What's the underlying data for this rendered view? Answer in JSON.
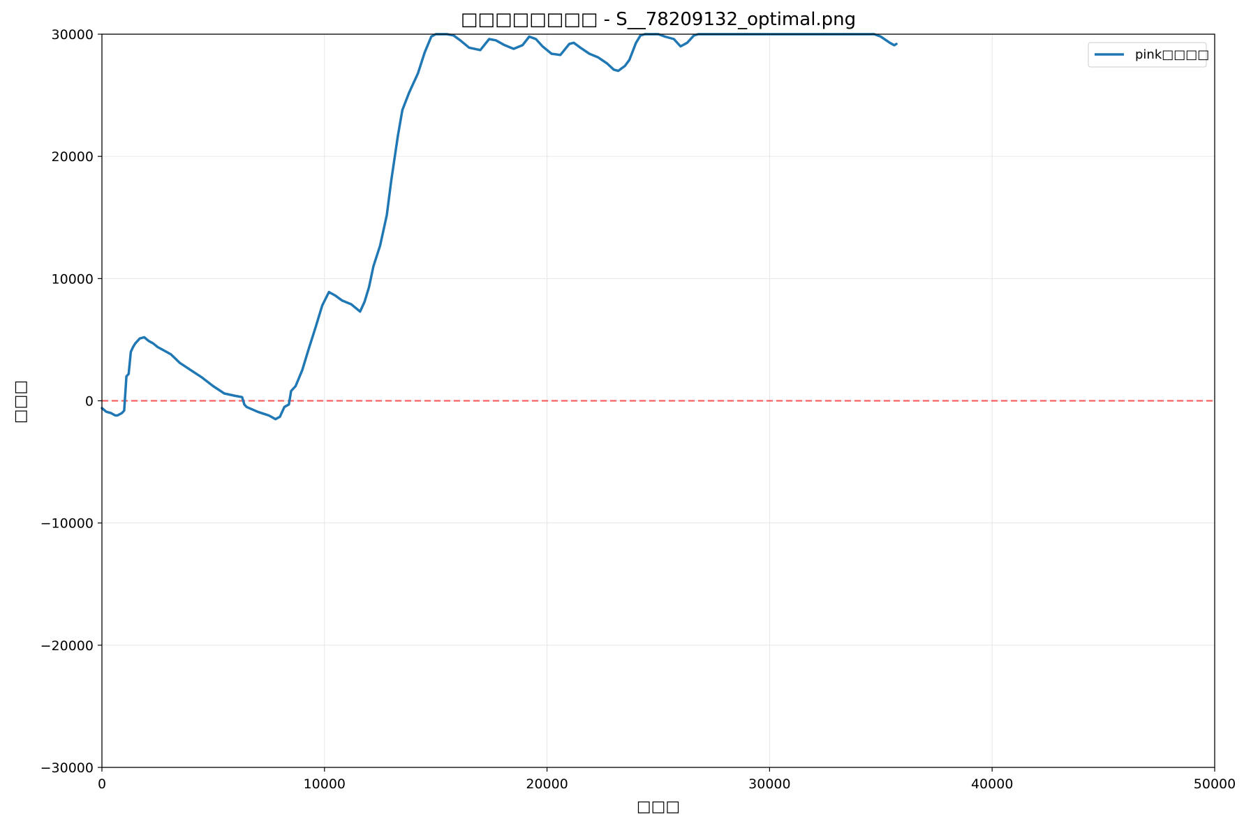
{
  "chart_data": {
    "type": "line",
    "title": "□□□□□□□□ - S__78209132_optimal.png",
    "xlabel": "□□□",
    "ylabel": "□□□",
    "xlim": [
      0,
      50000
    ],
    "ylim": [
      -30000,
      30000
    ],
    "xticks": [
      0,
      10000,
      20000,
      30000,
      40000,
      50000
    ],
    "xtick_labels": [
      "0",
      "10000",
      "20000",
      "30000",
      "40000",
      "50000"
    ],
    "yticks": [
      -30000,
      -20000,
      -10000,
      0,
      10000,
      20000,
      30000
    ],
    "ytick_labels": [
      "−30000",
      "−20000",
      "−10000",
      "0",
      "10000",
      "20000",
      "30000"
    ],
    "grid": true,
    "legend_position": "top-right",
    "reference_line": {
      "y": 0,
      "style": "dashed",
      "color": "#ff0000"
    },
    "series": [
      {
        "name": "pink□□□□",
        "color": "#1f77b4",
        "x": [
          0,
          200,
          400,
          600,
          700,
          900,
          1000,
          1100,
          1200,
          1300,
          1400,
          1500,
          1700,
          1900,
          2100,
          2300,
          2500,
          2700,
          2900,
          3100,
          3500,
          4000,
          4500,
          5000,
          5500,
          6000,
          6300,
          6400,
          6500,
          7000,
          7500,
          7800,
          8000,
          8200,
          8400,
          8500,
          8700,
          9000,
          9300,
          9600,
          9900,
          10200,
          10500,
          10800,
          11200,
          11600,
          11800,
          12000,
          12200,
          12500,
          12800,
          13000,
          13300,
          13500,
          13800,
          14200,
          14500,
          14800,
          15000,
          15200,
          15500,
          15800,
          16100,
          16500,
          17000,
          17400,
          17700,
          18100,
          18500,
          18900,
          19200,
          19500,
          19800,
          20200,
          20600,
          21000,
          21200,
          21500,
          21900,
          22300,
          22700,
          23000,
          23200,
          23500,
          23700,
          24000,
          24200,
          24400,
          24700,
          25000,
          25300,
          25700,
          26000,
          26300,
          26600,
          26800,
          27000,
          30000,
          34700,
          35000,
          35400,
          35600,
          35700
        ],
        "y": [
          -600,
          -900,
          -1000,
          -1200,
          -1200,
          -1000,
          -800,
          2000,
          2200,
          4000,
          4400,
          4700,
          5100,
          5200,
          4900,
          4700,
          4400,
          4200,
          4000,
          3800,
          3100,
          2500,
          1900,
          1200,
          600,
          400,
          300,
          -300,
          -500,
          -900,
          -1200,
          -1500,
          -1300,
          -500,
          -300,
          800,
          1200,
          2500,
          4300,
          6000,
          7800,
          8900,
          8600,
          8200,
          7900,
          7300,
          8100,
          9300,
          11000,
          12700,
          15200,
          18000,
          21700,
          23800,
          25200,
          26800,
          28500,
          29800,
          30000,
          30000,
          30000,
          29900,
          29500,
          28900,
          28700,
          29600,
          29500,
          29100,
          28800,
          29100,
          29800,
          29600,
          29000,
          28400,
          28300,
          29200,
          29300,
          28900,
          28400,
          28100,
          27600,
          27100,
          27000,
          27400,
          27900,
          29300,
          29900,
          30000,
          30000,
          30000,
          29800,
          29600,
          29000,
          29300,
          29900,
          30000,
          30000,
          30000,
          30000,
          29800,
          29300,
          29100,
          29200
        ]
      }
    ]
  }
}
